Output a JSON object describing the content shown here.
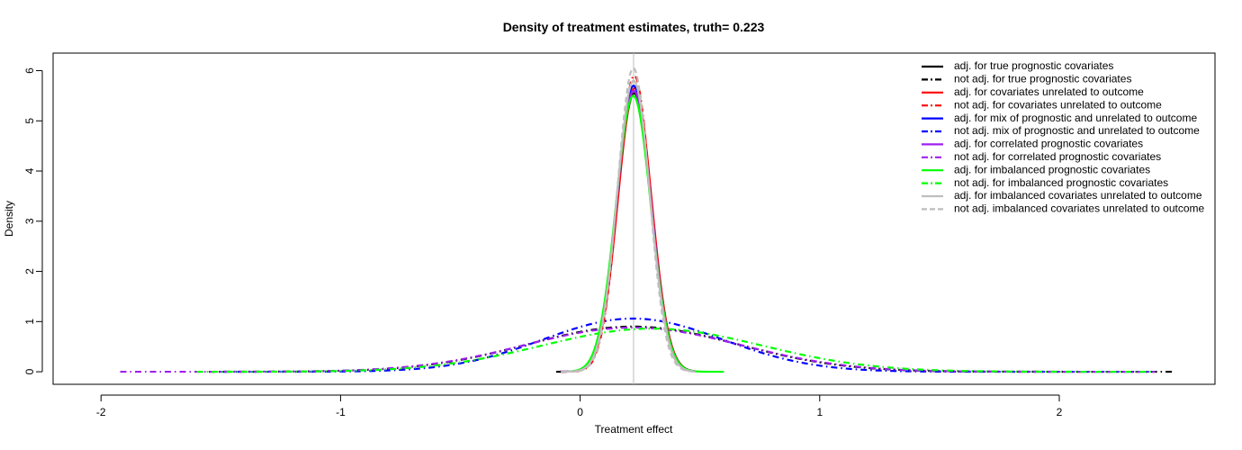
{
  "chart_data": {
    "type": "line",
    "title": "Density of treatment estimates, truth= 0.223",
    "xlabel": "Treatment effect",
    "ylabel": "Density",
    "xlim": [
      -2.2,
      2.65
    ],
    "ylim": [
      -0.25,
      6.35
    ],
    "xticks": [
      -2,
      -1,
      0,
      1,
      2
    ],
    "yticks": [
      0,
      1,
      2,
      3,
      4,
      5,
      6
    ],
    "grid": false,
    "legend_position": "top-right",
    "reference_line": {
      "x": 0.223,
      "color": "#bebebe"
    },
    "series": [
      {
        "name": "adj. for true prognostic covariates",
        "color": "#000000",
        "dash": "solid",
        "kind": "narrow",
        "mean": 0.226,
        "sd": 0.0718,
        "peak": 5.55,
        "range": [
          -0.1,
          0.48
        ]
      },
      {
        "name": "not adj. for true prognostic covariates",
        "color": "#000000",
        "dash": "dashdot",
        "kind": "wide",
        "mean": 0.22,
        "sd": 0.44,
        "peak": 0.9,
        "range": [
          -1.55,
          2.47
        ]
      },
      {
        "name": "adj. for covariates unrelated to outcome",
        "color": "#ff0000",
        "dash": "solid",
        "kind": "narrow",
        "mean": 0.228,
        "sd": 0.0705,
        "peak": 5.65,
        "range": [
          -0.08,
          0.48
        ]
      },
      {
        "name": "not adj. for covariates unrelated to outcome",
        "color": "#ff0000",
        "dash": "dashdot",
        "kind": "narrow",
        "mean": 0.226,
        "sd": 0.0675,
        "peak": 5.9,
        "range": [
          -0.08,
          0.48
        ]
      },
      {
        "name": "adj. for mix of prognostic and unrelated to outcome",
        "color": "#0000ff",
        "dash": "solid",
        "kind": "narrow",
        "mean": 0.223,
        "sd": 0.07,
        "peak": 5.7,
        "range": [
          -0.08,
          0.48
        ]
      },
      {
        "name": "not adj. mix of prognostic and unrelated to outcome",
        "color": "#0000ff",
        "dash": "dashdot",
        "kind": "wide",
        "mean": 0.22,
        "sd": 0.375,
        "peak": 1.06,
        "range": [
          -1.5,
          2.38
        ]
      },
      {
        "name": "adj. for correlated prognostic covariates",
        "color": "#a020f0",
        "dash": "solid",
        "kind": "narrow",
        "mean": 0.224,
        "sd": 0.0715,
        "peak": 5.6,
        "range": [
          -0.08,
          0.48
        ]
      },
      {
        "name": "not adj. for correlated prognostic covariates",
        "color": "#a020f0",
        "dash": "dashdot",
        "kind": "wide",
        "mean": 0.22,
        "sd": 0.45,
        "peak": 0.88,
        "range": [
          -1.92,
          2.4
        ]
      },
      {
        "name": "adj. for imbalanced prognostic covariates",
        "color": "#00ff00",
        "dash": "solid",
        "kind": "narrow",
        "mean": 0.222,
        "sd": 0.0725,
        "peak": 5.5,
        "range": [
          -0.05,
          0.6
        ]
      },
      {
        "name": "not adj. for imbalanced prognostic covariates",
        "color": "#00ff00",
        "dash": "dashdot",
        "kind": "wide",
        "mean": 0.3,
        "sd": 0.46,
        "peak": 0.86,
        "range": [
          -1.6,
          2.4
        ]
      },
      {
        "name": "adj. for imbalanced covariates unrelated to outcome",
        "color": "#bebebe",
        "dash": "solid",
        "kind": "narrow",
        "mean": 0.223,
        "sd": 0.069,
        "peak": 5.8,
        "range": [
          -0.08,
          0.48
        ]
      },
      {
        "name": "not adj. imbalanced covariates unrelated to outcome",
        "color": "#bebebe",
        "dash": "dashed",
        "kind": "narrow",
        "mean": 0.222,
        "sd": 0.066,
        "peak": 6.05,
        "range": [
          -0.08,
          0.48
        ]
      }
    ]
  }
}
